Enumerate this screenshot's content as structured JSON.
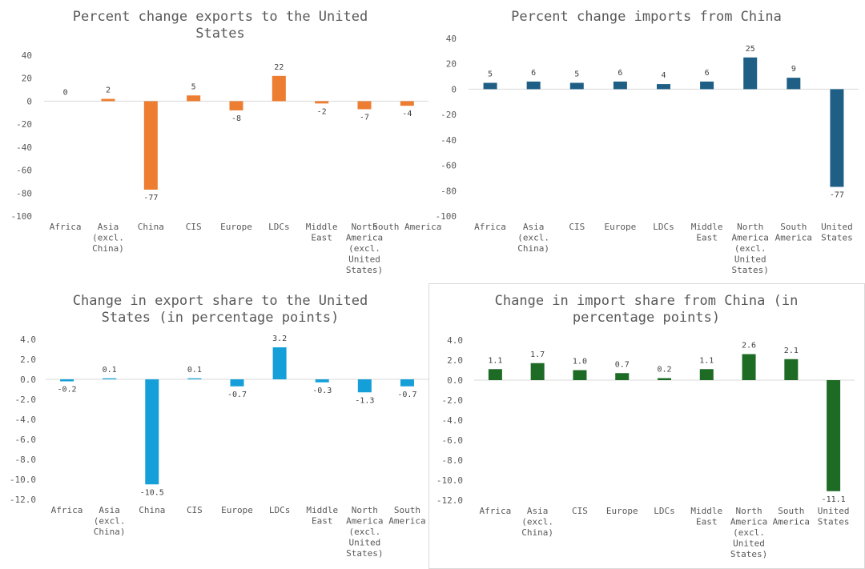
{
  "chart_data": [
    {
      "type": "bar",
      "title": "Percent change exports to the United States",
      "title_lines": [
        "Percent change exports to the United",
        "States"
      ],
      "categories": [
        "Africa",
        "Asia (excl. China)",
        "China",
        "CIS",
        "Europe",
        "LDCs",
        "Middle East",
        "North America (excl. United States)",
        "South America"
      ],
      "category_lines": [
        [
          "Africa"
        ],
        [
          "Asia",
          "(excl.",
          "China)"
        ],
        [
          "China"
        ],
        [
          "CIS"
        ],
        [
          "Europe"
        ],
        [
          "LDCs"
        ],
        [
          "Middle",
          "East"
        ],
        [
          "North",
          "America",
          "(excl.",
          "United",
          "States)"
        ],
        [
          "South America"
        ]
      ],
      "values": [
        0,
        2,
        -77,
        5,
        -8,
        22,
        -2,
        -7,
        -4
      ],
      "value_labels": [
        "0",
        "2",
        "-77",
        "5",
        "-8",
        "22",
        "-2",
        "-7",
        "-4"
      ],
      "ylim": [
        -100,
        40
      ],
      "yticks": [
        40,
        20,
        0,
        -20,
        -40,
        -60,
        -80,
        -100
      ],
      "ytick_labels": [
        "40",
        "20",
        "0",
        "-20",
        "-40",
        "-60",
        "-80",
        "-100"
      ],
      "color": "#ED7D31",
      "xlabel": "",
      "ylabel": "",
      "grid": false,
      "legend": "none"
    },
    {
      "type": "bar",
      "title": "Percent change imports from China",
      "title_lines": [
        "Percent change imports from China"
      ],
      "categories": [
        "Africa",
        "Asia (excl. China)",
        "CIS",
        "Europe",
        "LDCs",
        "Middle East",
        "North America (excl. United States)",
        "South America",
        "United States"
      ],
      "category_lines": [
        [
          "Africa"
        ],
        [
          "Asia",
          "(excl.",
          "China)"
        ],
        [
          "CIS"
        ],
        [
          "Europe"
        ],
        [
          "LDCs"
        ],
        [
          "Middle",
          "East"
        ],
        [
          "North",
          "America",
          "(excl.",
          "United",
          "States)"
        ],
        [
          "South",
          "America"
        ],
        [
          "United",
          "States"
        ]
      ],
      "values": [
        5,
        6,
        5,
        6,
        4,
        6,
        25,
        9,
        -77
      ],
      "value_labels": [
        "5",
        "6",
        "5",
        "6",
        "4",
        "6",
        "25",
        "9",
        "-77"
      ],
      "ylim": [
        -100,
        40
      ],
      "yticks": [
        40,
        20,
        0,
        -20,
        -40,
        -60,
        -80,
        -100
      ],
      "ytick_labels": [
        "40",
        "20",
        "0",
        "-20",
        "-40",
        "-60",
        "-80",
        "-100"
      ],
      "color": "#1F5F85",
      "xlabel": "",
      "ylabel": "",
      "grid": false,
      "legend": "none"
    },
    {
      "type": "bar",
      "title": "Change in export share to the United States (in percentage points)",
      "title_lines": [
        "Change in export share to the United",
        "States (in percentage points)"
      ],
      "categories": [
        "Africa",
        "Asia (excl. China)",
        "China",
        "CIS",
        "Europe",
        "LDCs",
        "Middle East",
        "North America (excl. United States)",
        "South America"
      ],
      "category_lines": [
        [
          "Africa"
        ],
        [
          "Asia",
          "(excl.",
          "China)"
        ],
        [
          "China"
        ],
        [
          "CIS"
        ],
        [
          "Europe"
        ],
        [
          "LDCs"
        ],
        [
          "Middle",
          "East"
        ],
        [
          "North",
          "America",
          "(excl.",
          "United",
          "States)"
        ],
        [
          "South",
          "America"
        ]
      ],
      "values": [
        -0.2,
        0.1,
        -10.5,
        0.1,
        -0.7,
        3.2,
        -0.3,
        -1.3,
        -0.7
      ],
      "value_labels": [
        "-0.2",
        "0.1",
        "-10.5",
        "0.1",
        "-0.7",
        "3.2",
        "-0.3",
        "-1.3",
        "-0.7"
      ],
      "ylim": [
        -12,
        4
      ],
      "yticks": [
        4,
        2,
        0,
        -2,
        -4,
        -6,
        -8,
        -10,
        -12
      ],
      "ytick_labels": [
        "4.0",
        "2.0",
        "0.0",
        "-2.0",
        "-4.0",
        "-6.0",
        "-8.0",
        "-10.0",
        "-12.0"
      ],
      "color": "#159FD8",
      "xlabel": "",
      "ylabel": "",
      "grid": false,
      "legend": "none"
    },
    {
      "type": "bar",
      "title": "Change in import share from China (in percentage points)",
      "title_lines": [
        "Change in import share from China (in",
        "percentage points)"
      ],
      "categories": [
        "Africa",
        "Asia (excl. China)",
        "CIS",
        "Europe",
        "LDCs",
        "Middle East",
        "North America (excl. United States)",
        "South America",
        "United States"
      ],
      "category_lines": [
        [
          "Africa"
        ],
        [
          "Asia",
          "(excl.",
          "China)"
        ],
        [
          "CIS"
        ],
        [
          "Europe"
        ],
        [
          "LDCs"
        ],
        [
          "Middle",
          "East"
        ],
        [
          "North",
          "America",
          "(excl.",
          "United",
          "States)"
        ],
        [
          "South",
          "America"
        ],
        [
          "United",
          "States"
        ]
      ],
      "values": [
        1.1,
        1.7,
        1.0,
        0.7,
        0.2,
        1.1,
        2.6,
        2.1,
        -11.1
      ],
      "value_labels": [
        "1.1",
        "1.7",
        "1.0",
        "0.7",
        "0.2",
        "1.1",
        "2.6",
        "2.1",
        "-11.1"
      ],
      "ylim": [
        -12,
        4
      ],
      "yticks": [
        4,
        2,
        0,
        -2,
        -4,
        -6,
        -8,
        -10,
        -12
      ],
      "ytick_labels": [
        "4.0",
        "2.0",
        "0.0",
        "-2.0",
        "-4.0",
        "-6.0",
        "-8.0",
        "-10.0",
        "-12.0"
      ],
      "color": "#1E6B26",
      "xlabel": "",
      "ylabel": "",
      "grid": false,
      "legend": "none"
    }
  ]
}
